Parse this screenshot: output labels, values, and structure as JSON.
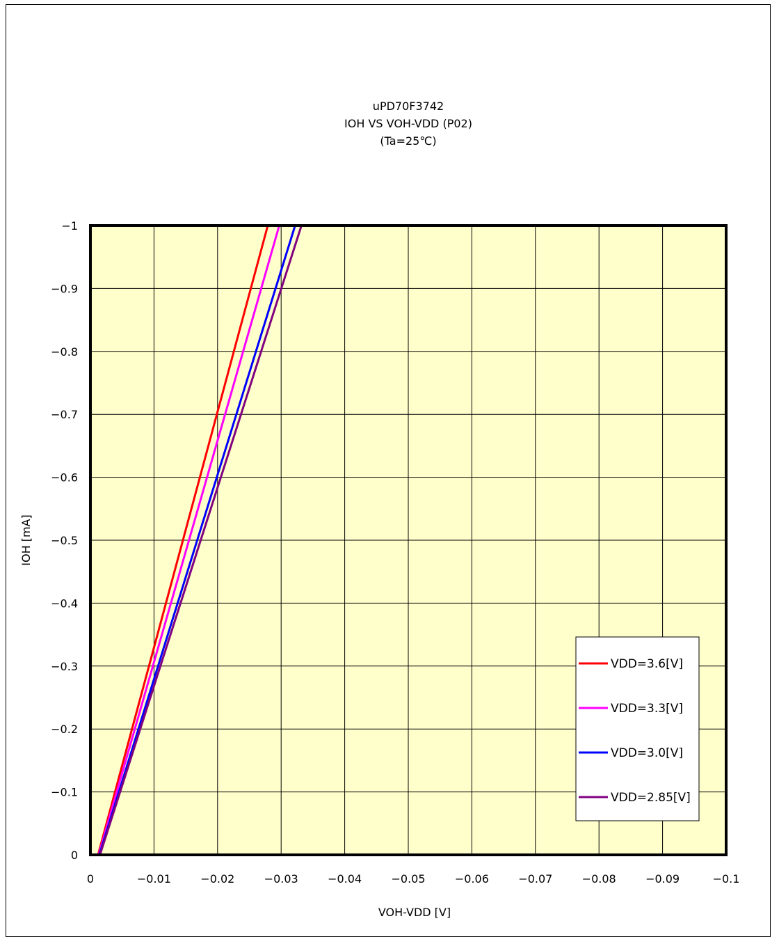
{
  "chart_data": {
    "type": "line",
    "title": [
      "uPD70F3742",
      "IOH VS VOH-VDD (P02)",
      "(Ta=25℃)"
    ],
    "xlabel": "VOH-VDD [V]",
    "ylabel": "IOH [mA]",
    "xlim": [
      0,
      -0.1
    ],
    "ylim": [
      0,
      -1
    ],
    "xticks": [
      0,
      -0.01,
      -0.02,
      -0.03,
      -0.04,
      -0.05,
      -0.06,
      -0.07,
      -0.08,
      -0.09,
      -0.1
    ],
    "yticks": [
      0,
      -0.1,
      -0.2,
      -0.3,
      -0.4,
      -0.5,
      -0.6,
      -0.7,
      -0.8,
      -0.9,
      -1
    ],
    "xtick_labels": [
      "0",
      "−0.01",
      "−0.02",
      "−0.03",
      "−0.04",
      "−0.05",
      "−0.06",
      "−0.07",
      "−0.08",
      "−0.09",
      "−0.1"
    ],
    "ytick_labels": [
      "0",
      "−0.1",
      "−0.2",
      "−0.3",
      "−0.4",
      "−0.5",
      "−0.6",
      "−0.7",
      "−0.8",
      "−0.9",
      "−1"
    ],
    "grid": true,
    "legend_position": "bottom-right",
    "plot_background": "#ffffcc",
    "series": [
      {
        "name": "VDD=3.6[V]",
        "color": "#ff0000",
        "x": [
          -0.0012,
          -0.0279
        ],
        "y": [
          0,
          -1
        ]
      },
      {
        "name": "VDD=3.3[V]",
        "color": "#ff00ff",
        "x": [
          -0.0013,
          -0.0297
        ],
        "y": [
          0,
          -1
        ]
      },
      {
        "name": "VDD=3.0[V]",
        "color": "#0000ff",
        "x": [
          -0.0014,
          -0.0322
        ],
        "y": [
          0,
          -1
        ]
      },
      {
        "name": "VDD=2.85[V]",
        "color": "#800080",
        "x": [
          -0.0015,
          -0.0332
        ],
        "y": [
          0,
          -1
        ]
      }
    ]
  }
}
